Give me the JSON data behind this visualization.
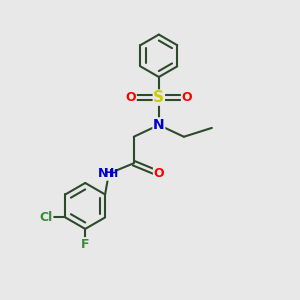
{
  "background_color": "#e8e8e8",
  "bond_color": "#2d4a2d",
  "atom_colors": {
    "N": "#0000cc",
    "O": "#ff0000",
    "S": "#cccc00",
    "Cl": "#3a8a3a",
    "F": "#3a8a3a",
    "H": "#2d4a2d",
    "C": "#2d4a2d"
  },
  "font_size": 9,
  "bond_width": 1.5
}
